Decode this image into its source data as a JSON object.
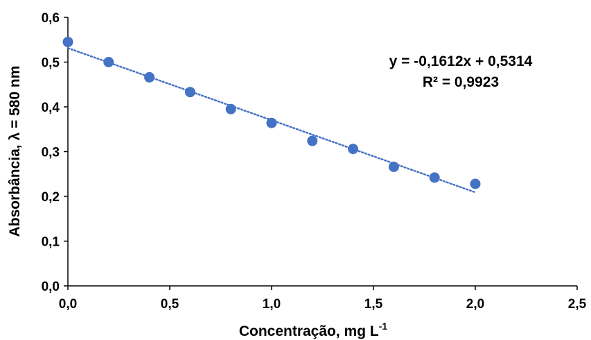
{
  "chart_data": {
    "type": "scatter",
    "x": [
      0.0,
      0.2,
      0.4,
      0.6,
      0.8,
      1.0,
      1.2,
      1.4,
      1.6,
      1.8,
      2.0
    ],
    "y": [
      0.545,
      0.5,
      0.466,
      0.433,
      0.395,
      0.364,
      0.324,
      0.306,
      0.266,
      0.242,
      0.228
    ],
    "marker_color": "#4472C4",
    "trendline": {
      "type": "linear",
      "slope": -0.1612,
      "intercept": 0.5314,
      "x_range": [
        0.0,
        2.0
      ],
      "style": "dotted",
      "color": "#4472C4",
      "equation_label": "y = -0,1612x + 0,5314",
      "r2_label": "R² = 0,9923"
    },
    "xlabel": "Concentração, mg L",
    "xlabel_superscript": "-1",
    "ylabel": "Absorbância,  λ = 580 nm",
    "xlim": [
      0.0,
      2.5
    ],
    "ylim": [
      0.0,
      0.6
    ],
    "xticks": [
      0.0,
      0.5,
      1.0,
      1.5,
      2.0,
      2.5
    ],
    "xtick_labels": [
      "0,0",
      "0,5",
      "1,0",
      "1,5",
      "2,0",
      "2,5"
    ],
    "yticks": [
      0.0,
      0.1,
      0.2,
      0.3,
      0.4,
      0.5,
      0.6
    ],
    "ytick_labels": [
      "0,0",
      "0,1",
      "0,2",
      "0,3",
      "0,4",
      "0,5",
      "0,6"
    ],
    "grid": false,
    "legend": "none"
  }
}
